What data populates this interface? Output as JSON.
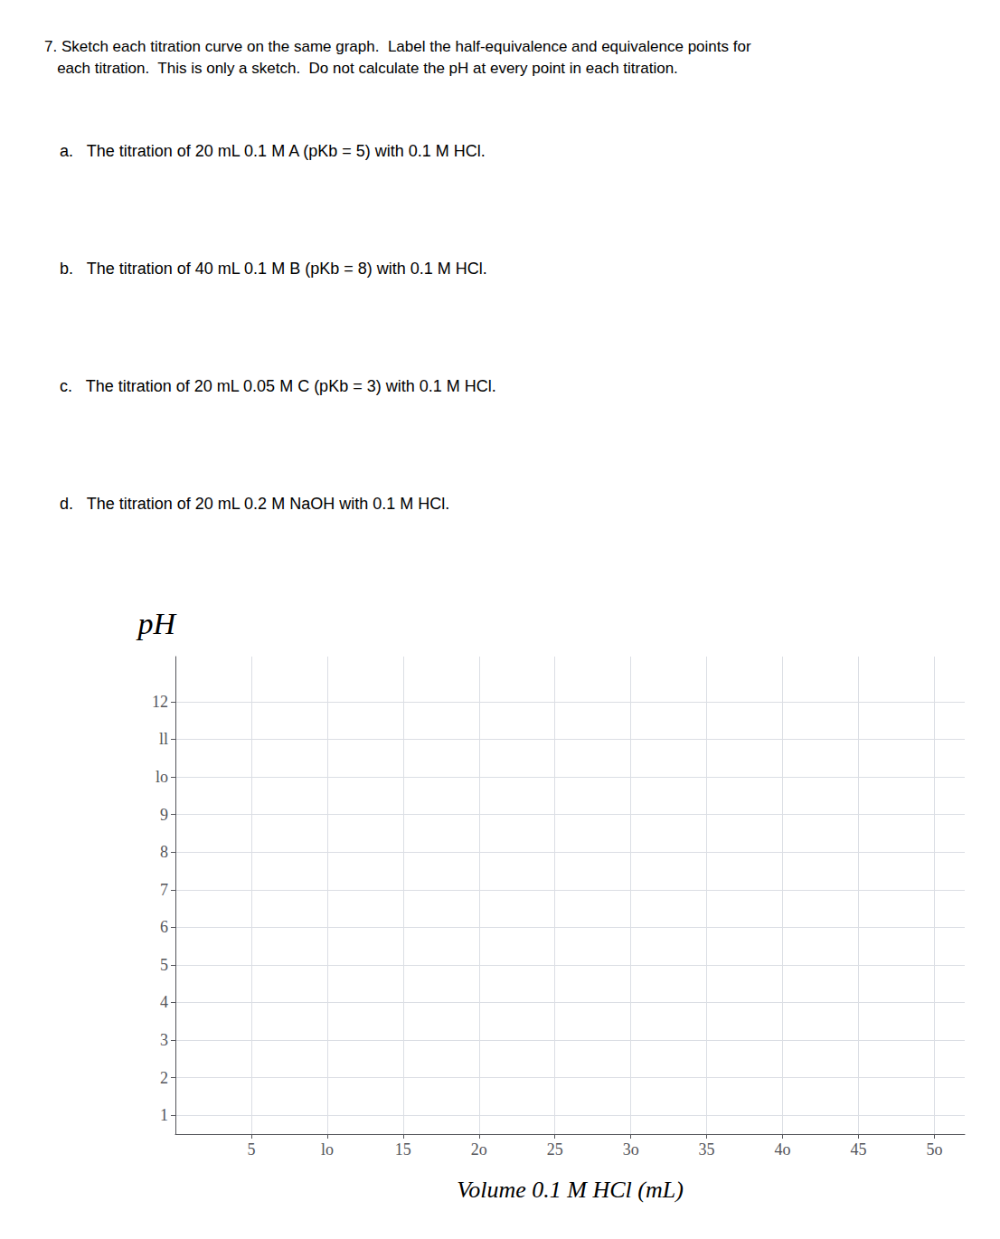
{
  "chart_data": {
    "type": "line",
    "title": "7. Sketch each titration curve on the same graph.  Label the half-equivalence and equivalence points for\n   each titration.  This is only a sketch.  Do not calculate the pH at every point in each titration.",
    "annotations": [
      "a.   The titration of 20 mL 0.1 M A (pKb = 5) with 0.1 M HCl.",
      "b.   The titration of 40 mL 0.1 M B (pKb = 8) with 0.1 M HCl.",
      "c.   The titration of 20 mL 0.05 M C (pKb = 3) with 0.1 M HCl.",
      "d.   The titration of 20 mL 0.2 M NaOH with 0.1 M HCl."
    ],
    "xlabel": "Volume 0.1 M HCl (mL)",
    "ylabel": "pH",
    "xlim": [
      0,
      52
    ],
    "ylim": [
      0.5,
      13.2
    ],
    "xticks": [
      5,
      {
        "value": 10,
        "label": "lo"
      },
      15,
      {
        "value": 20,
        "label": "2o"
      },
      25,
      {
        "value": 30,
        "label": "3o"
      },
      35,
      {
        "value": 40,
        "label": "4o"
      },
      45,
      {
        "value": 50,
        "label": "5o"
      }
    ],
    "yticks": [
      1,
      2,
      3,
      4,
      5,
      6,
      7,
      8,
      9,
      {
        "value": 10,
        "label": "lo"
      },
      {
        "value": 11,
        "label": "ll"
      },
      12
    ],
    "grid": true
  }
}
